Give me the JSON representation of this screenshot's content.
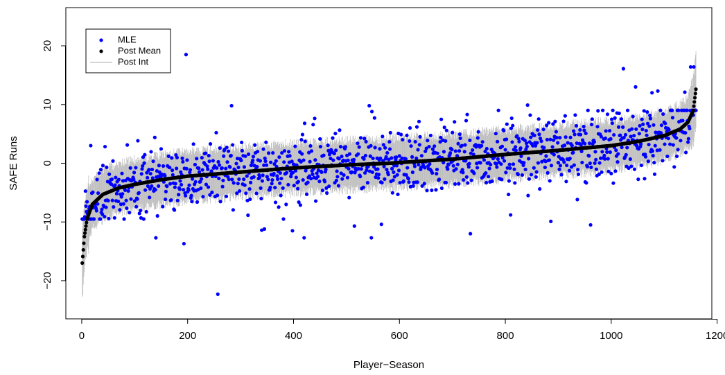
{
  "chart_data": {
    "type": "scatter",
    "title": "",
    "xlabel": "Player−Season",
    "ylabel": "SAFE Runs",
    "xlim": [
      -30,
      1190
    ],
    "ylim": [
      -26.5,
      26.5
    ],
    "x_ticks": [
      0,
      200,
      400,
      600,
      800,
      1000,
      1200
    ],
    "y_ticks": [
      -20,
      -10,
      0,
      10,
      20
    ],
    "y_tick_labels": [
      "−20",
      "−10",
      "0",
      "10",
      "20"
    ],
    "n_points": 1160,
    "grid": false,
    "legend": {
      "position": "top-left",
      "entries": [
        {
          "label": "MLE",
          "marker": "point",
          "color": "#0000ff"
        },
        {
          "label": "Post Mean",
          "marker": "point",
          "color": "#000000"
        },
        {
          "label": "Post Int",
          "marker": "line",
          "color": "#bebebe"
        }
      ]
    },
    "series": [
      {
        "name": "Post Mean",
        "color": "#000000",
        "profile_x": [
          1,
          5,
          10,
          20,
          40,
          70,
          100,
          150,
          200,
          300,
          400,
          500,
          580,
          700,
          800,
          900,
          1000,
          1050,
          1100,
          1130,
          1145,
          1155,
          1160
        ],
        "profile_y": [
          -17,
          -12.5,
          -9.5,
          -7,
          -5.3,
          -4.2,
          -3.6,
          -2.8,
          -2.2,
          -1.5,
          -0.8,
          -0.3,
          0.0,
          0.7,
          1.5,
          2.2,
          3.0,
          3.7,
          4.7,
          5.8,
          7.0,
          9.0,
          12.6
        ]
      },
      {
        "name": "MLE",
        "color": "#0000ff",
        "noise_sd": 2.7,
        "notable_points": [
          {
            "x": 197,
            "y": 18.5
          },
          {
            "x": 257,
            "y": -22.3
          },
          {
            "x": 193,
            "y": -13.7
          },
          {
            "x": 283,
            "y": 9.8
          },
          {
            "x": 543,
            "y": 9.8
          },
          {
            "x": 548,
            "y": 8.8
          },
          {
            "x": 734,
            "y": -12.0
          },
          {
            "x": 961,
            "y": -10.5
          },
          {
            "x": 886,
            "y": -9.9
          },
          {
            "x": 1023,
            "y": 16.1
          },
          {
            "x": 1150,
            "y": 16.4
          },
          {
            "x": 1156,
            "y": 16.4
          },
          {
            "x": 1046,
            "y": 13.0
          },
          {
            "x": 1088,
            "y": 12.3
          },
          {
            "x": 1077,
            "y": 12.0
          },
          {
            "x": 1139,
            "y": 12.1
          },
          {
            "x": 420,
            "y": -12.7
          },
          {
            "x": 547,
            "y": -12.7
          },
          {
            "x": 340,
            "y": -11.4
          },
          {
            "x": 345,
            "y": -11.2
          },
          {
            "x": 398,
            "y": -11.5
          },
          {
            "x": 515,
            "y": -10.7
          },
          {
            "x": 566,
            "y": -10.4
          },
          {
            "x": 140,
            "y": -12.7
          },
          {
            "x": 17,
            "y": 3.0
          },
          {
            "x": 421,
            "y": 6.8
          },
          {
            "x": 254,
            "y": 5.2
          },
          {
            "x": 842,
            "y": 9.9
          },
          {
            "x": 810,
            "y": -8.8
          },
          {
            "x": 728,
            "y": 8.3
          },
          {
            "x": 1015,
            "y": 8.5
          },
          {
            "x": 1161,
            "y": 5.1
          }
        ]
      },
      {
        "name": "Post Int",
        "color": "#bebebe",
        "half_width": 4.2
      }
    ]
  }
}
